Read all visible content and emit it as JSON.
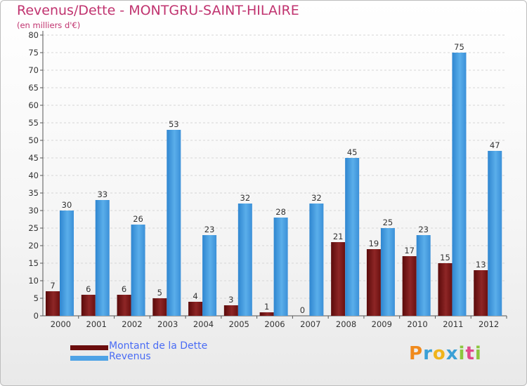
{
  "title": "Revenus/Dette - MONTGRU-SAINT-HILAIRE",
  "subtitle": "(en milliers d'€)",
  "colors": {
    "dette": "#7a1414",
    "revenus": "#4fa3e6",
    "title": "#c0336f",
    "legend_text": "#4a6cf4"
  },
  "legend": [
    {
      "label": "Montant de la Dette",
      "color": "#6b0d0d"
    },
    {
      "label": "Revenus",
      "color": "#4fa3e6"
    }
  ],
  "logo": {
    "letters": [
      "P",
      "r",
      "o",
      "x",
      "i",
      "t",
      "i"
    ],
    "colors": [
      "#f08a1c",
      "#3aa0d6",
      "#f0b41c",
      "#3aa0d6",
      "#8cc63f",
      "#e04a8a",
      "#8cc63f"
    ]
  },
  "chart_data": {
    "type": "bar",
    "title": "Revenus/Dette - MONTGRU-SAINT-HILAIRE",
    "subtitle": "(en milliers d'€)",
    "categories": [
      "2000",
      "2001",
      "2002",
      "2003",
      "2004",
      "2005",
      "2006",
      "2007",
      "2008",
      "2009",
      "2010",
      "2011",
      "2012"
    ],
    "series": [
      {
        "name": "Montant de la Dette",
        "values": [
          7,
          6,
          6,
          5,
          4,
          3,
          1,
          0,
          21,
          19,
          17,
          15,
          13
        ]
      },
      {
        "name": "Revenus",
        "values": [
          30,
          33,
          26,
          53,
          23,
          32,
          28,
          32,
          45,
          25,
          23,
          75,
          47
        ]
      }
    ],
    "ylim": [
      0,
      80
    ],
    "ytick_step": 5,
    "grid": true,
    "legend_position": "bottom-left"
  }
}
